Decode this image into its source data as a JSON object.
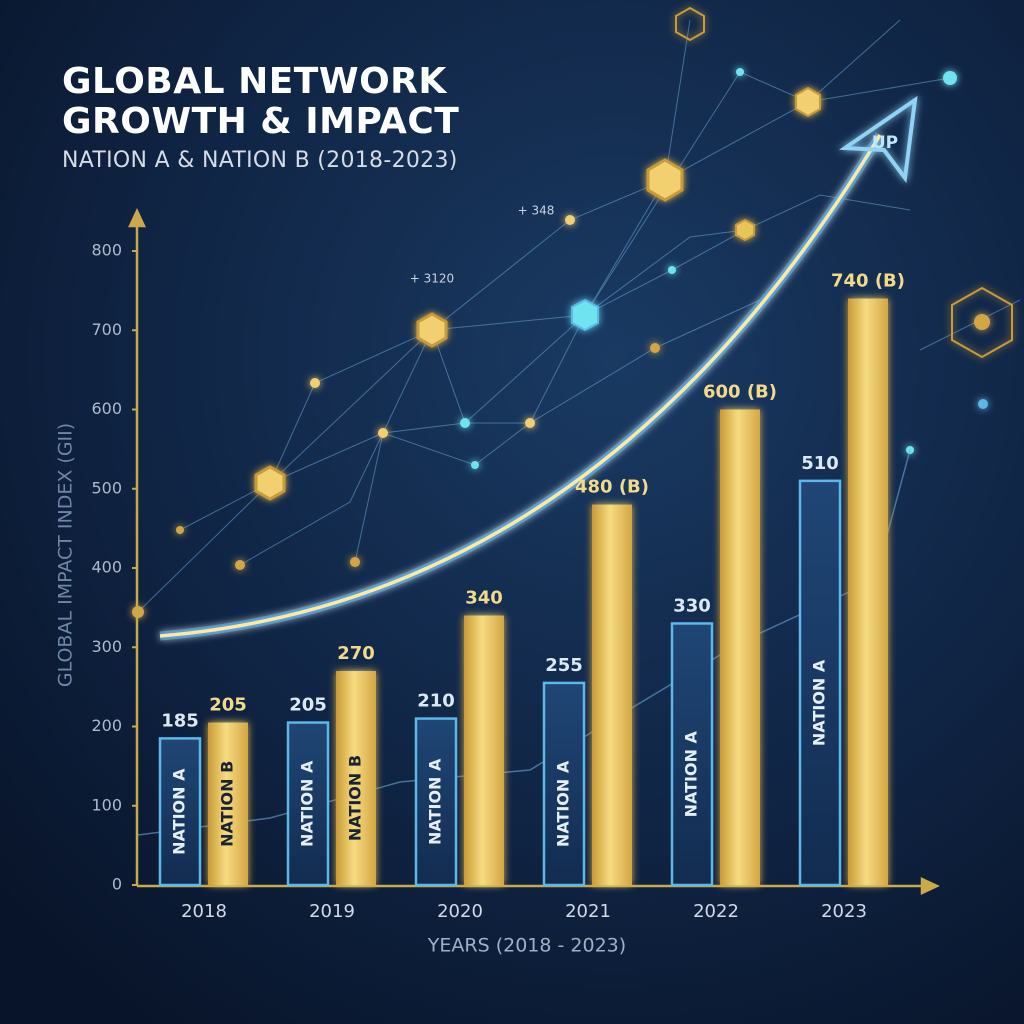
{
  "chart_data": {
    "type": "bar",
    "title": "GLOBAL NETWORK GROWTH & IMPACT",
    "subtitle": "NATION A & NATION B (2018-2023)",
    "x_label": "YEARS (2018 - 2023)",
    "y_label": "GLOBAL IMPACT INDEX (GII)",
    "categories": [
      "2018",
      "2019",
      "2020",
      "2021",
      "2022",
      "2023"
    ],
    "series": [
      {
        "name": "NATION A",
        "color": "#5bb8e8",
        "values": [
          185,
          205,
          210,
          255,
          330,
          510
        ],
        "bar_text": [
          "NATION A",
          "NATION A",
          "NATION A",
          "NATION A",
          "NATION A",
          "NATION A"
        ]
      },
      {
        "name": "NATION B",
        "color": "#e8c55a",
        "values": [
          205,
          270,
          340,
          480,
          600,
          740
        ],
        "value_labels": [
          "205",
          "270",
          "340",
          "480 (B)",
          "600 (B)",
          "740 (B)"
        ],
        "bar_text": [
          "NATION B",
          "NATION B",
          null,
          null,
          null,
          null
        ]
      }
    ],
    "ylim": [
      0,
      800
    ],
    "yticks": [
      0,
      100,
      200,
      300,
      400,
      500,
      600,
      700,
      800
    ],
    "grid": false,
    "annotations": [
      "UP",
      "+ 348",
      "+ 3120"
    ]
  }
}
